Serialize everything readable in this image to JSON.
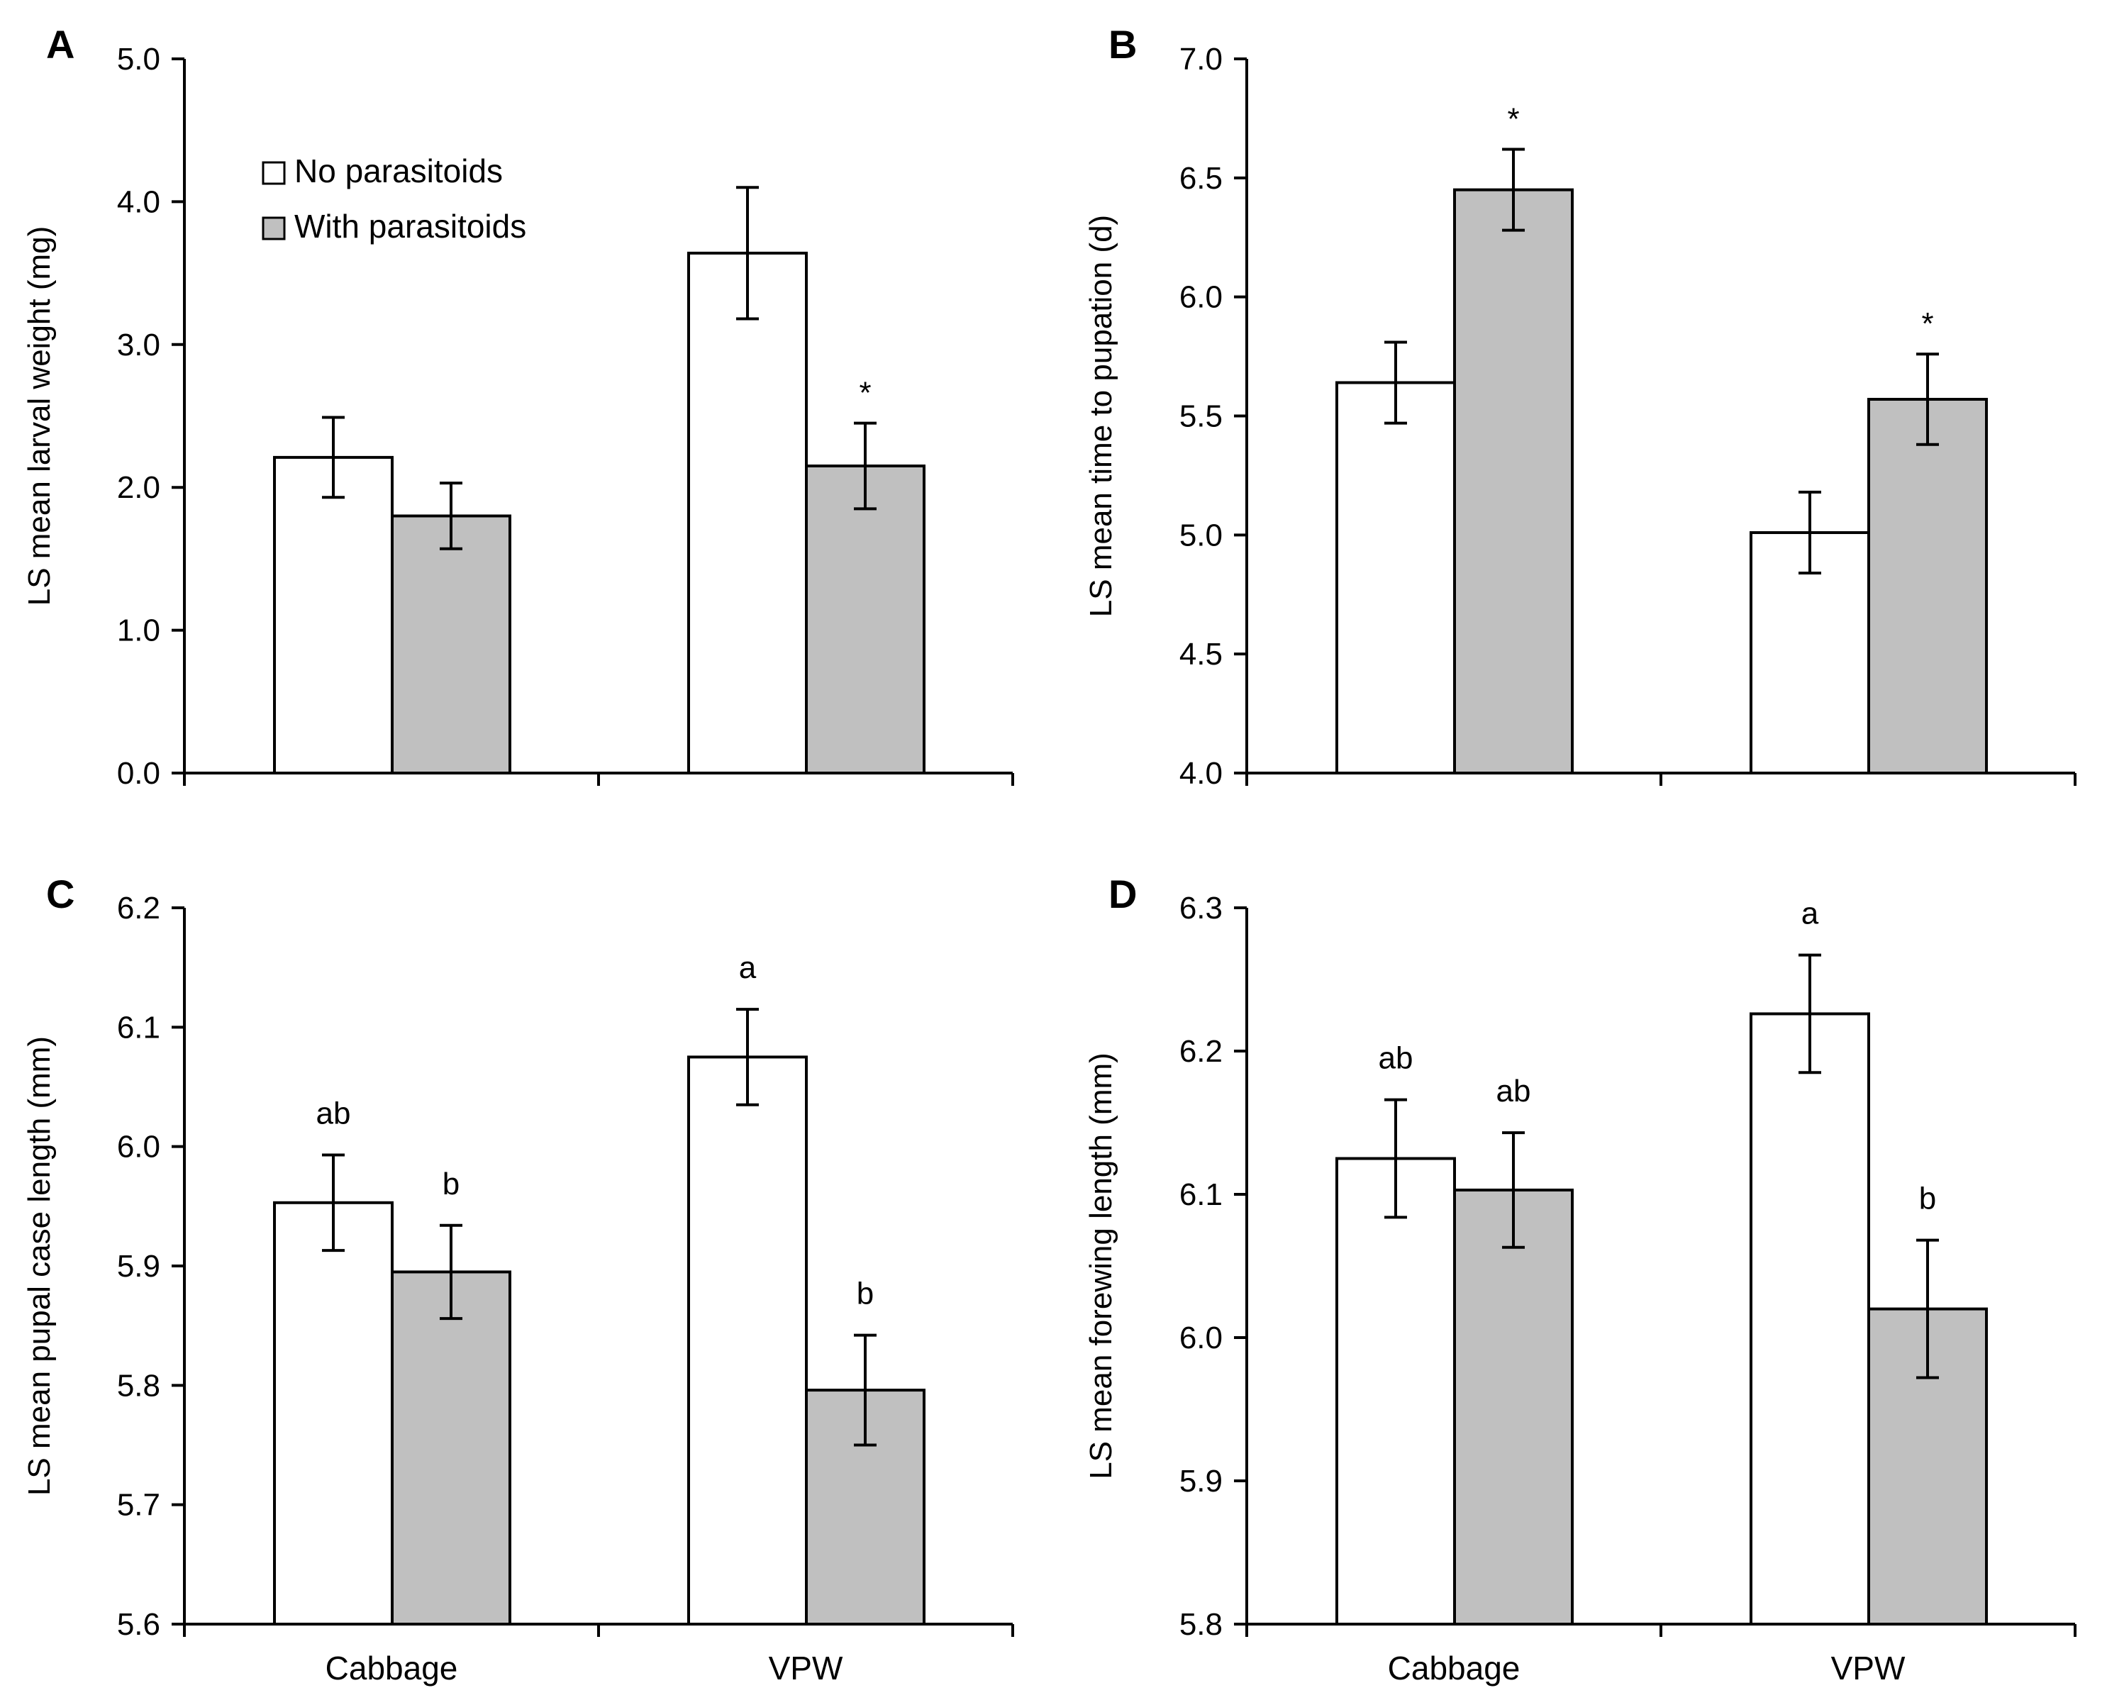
{
  "legend": [
    {
      "label": "No parasitoids",
      "color": "#ffffff"
    },
    {
      "label": "With parasitoids",
      "color": "#c0c0c0"
    }
  ],
  "chart_data": [
    {
      "panel": "A",
      "type": "bar",
      "ylabel": "LS mean larval weight (mg)",
      "ylim": [
        0.0,
        5.0
      ],
      "yticks": [
        "0.0",
        "1.0",
        "2.0",
        "3.0",
        "4.0",
        "5.0"
      ],
      "categories": [
        "Cabbage",
        "VPW"
      ],
      "show_category_labels": false,
      "series": [
        {
          "name": "No parasitoids",
          "values": [
            2.21,
            3.64
          ],
          "errors": [
            0.28,
            0.46
          ],
          "annotations": [
            "",
            ""
          ]
        },
        {
          "name": "With parasitoids",
          "values": [
            1.8,
            2.15
          ],
          "errors": [
            0.23,
            0.3
          ],
          "annotations": [
            "",
            "*"
          ]
        }
      ]
    },
    {
      "panel": "B",
      "type": "bar",
      "ylabel": "LS mean time to pupation (d)",
      "ylim": [
        4.0,
        7.0
      ],
      "yticks": [
        "4.0",
        "4.5",
        "5.0",
        "5.5",
        "6.0",
        "6.5",
        "7.0"
      ],
      "categories": [
        "Cabbage",
        "VPW"
      ],
      "show_category_labels": false,
      "series": [
        {
          "name": "No parasitoids",
          "values": [
            5.64,
            5.01
          ],
          "errors": [
            0.17,
            0.17
          ],
          "annotations": [
            "",
            ""
          ]
        },
        {
          "name": "With parasitoids",
          "values": [
            6.45,
            5.57
          ],
          "errors": [
            0.17,
            0.19
          ],
          "annotations": [
            "*",
            "*"
          ]
        }
      ]
    },
    {
      "panel": "C",
      "type": "bar",
      "ylabel": "LS mean pupal case length (mm)",
      "ylim": [
        5.6,
        6.2
      ],
      "yticks": [
        "5.6",
        "5.7",
        "5.8",
        "5.9",
        "6.0",
        "6.1",
        "6.2"
      ],
      "categories": [
        "Cabbage",
        "VPW"
      ],
      "show_category_labels": true,
      "series": [
        {
          "name": "No parasitoids",
          "values": [
            5.953,
            6.075
          ],
          "errors": [
            0.04,
            0.04
          ],
          "annotations": [
            "ab",
            "a"
          ]
        },
        {
          "name": "With parasitoids",
          "values": [
            5.895,
            5.796
          ],
          "errors": [
            0.039,
            0.046
          ],
          "annotations": [
            "b",
            "b"
          ]
        }
      ]
    },
    {
      "panel": "D",
      "type": "bar",
      "ylabel": "LS mean forewing length (mm)",
      "ylim": [
        5.8,
        6.3
      ],
      "yticks": [
        "5.8",
        "5.9",
        "6.0",
        "6.1",
        "6.2",
        "6.3"
      ],
      "categories": [
        "Cabbage",
        "VPW"
      ],
      "show_category_labels": true,
      "series": [
        {
          "name": "No parasitoids",
          "values": [
            6.125,
            6.226
          ],
          "errors": [
            0.041,
            0.041
          ],
          "annotations": [
            "ab",
            "a"
          ]
        },
        {
          "name": "With parasitoids",
          "values": [
            6.103,
            6.02
          ],
          "errors": [
            0.04,
            0.048
          ],
          "annotations": [
            "ab",
            "b"
          ]
        }
      ]
    }
  ]
}
